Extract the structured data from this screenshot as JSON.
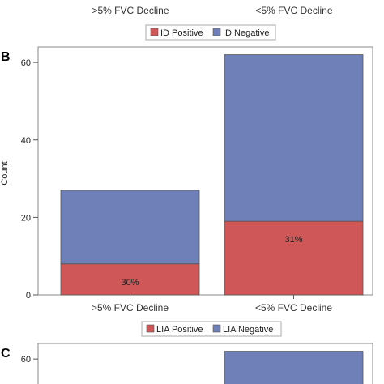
{
  "panels": {
    "A": {
      "categories": [
        ">5% FVC Decline",
        "<5% FVC Decline"
      ],
      "legend": [
        "ID Positive",
        "ID Negative"
      ]
    },
    "B": {
      "label": "B"
    },
    "C": {
      "label": "C"
    }
  },
  "colors": {
    "positive": "#d05757",
    "negative": "#6f7fb7",
    "axis": "#555555",
    "frame": "#888888"
  },
  "chart_data": [
    {
      "type": "bar",
      "stacked": true,
      "panel": "B",
      "categories": [
        ">5% FVC Decline",
        "<5% FVC Decline"
      ],
      "series": [
        {
          "name": "LIA Positive",
          "values": [
            8,
            19
          ]
        },
        {
          "name": "LIA Negative",
          "values": [
            19,
            43
          ]
        }
      ],
      "data_labels": [
        "30%",
        "31%"
      ],
      "ylabel": "Count",
      "yticks": [
        0,
        20,
        40,
        60
      ],
      "ylim": [
        0,
        64
      ],
      "legend": [
        "LIA Positive",
        "LIA Negative"
      ],
      "legend_position": "bottom"
    },
    {
      "type": "bar",
      "stacked": true,
      "panel": "C",
      "categories": [
        ">5% FVC Decline",
        "<5% FVC Decline"
      ],
      "series": [
        {
          "name": "",
          "values": [
            null,
            62
          ]
        }
      ],
      "yticks": [
        60
      ],
      "ylim": [
        0,
        64
      ]
    }
  ]
}
